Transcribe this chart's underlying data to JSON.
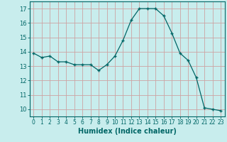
{
  "x": [
    0,
    1,
    2,
    3,
    4,
    5,
    6,
    7,
    8,
    9,
    10,
    11,
    12,
    13,
    14,
    15,
    16,
    17,
    18,
    19,
    20,
    21,
    22,
    23
  ],
  "y": [
    13.9,
    13.6,
    13.7,
    13.3,
    13.3,
    13.1,
    13.1,
    13.1,
    12.7,
    13.1,
    13.7,
    14.8,
    16.2,
    17.0,
    17.0,
    17.0,
    16.5,
    15.3,
    13.9,
    13.4,
    12.2,
    10.1,
    10.0,
    9.9
  ],
  "xlabel": "Humidex (Indice chaleur)",
  "ylim": [
    9.5,
    17.5
  ],
  "xlim": [
    -0.5,
    23.5
  ],
  "yticks": [
    10,
    11,
    12,
    13,
    14,
    15,
    16,
    17
  ],
  "xticks": [
    0,
    1,
    2,
    3,
    4,
    5,
    6,
    7,
    8,
    9,
    10,
    11,
    12,
    13,
    14,
    15,
    16,
    17,
    18,
    19,
    20,
    21,
    22,
    23
  ],
  "line_color": "#006666",
  "marker": "+",
  "bg_color": "#c8eded",
  "grid_color": "#b0c8c8",
  "grid_color_red": "#d4a0a0",
  "tick_color": "#006666",
  "label_color": "#006666",
  "spine_color": "#006666"
}
